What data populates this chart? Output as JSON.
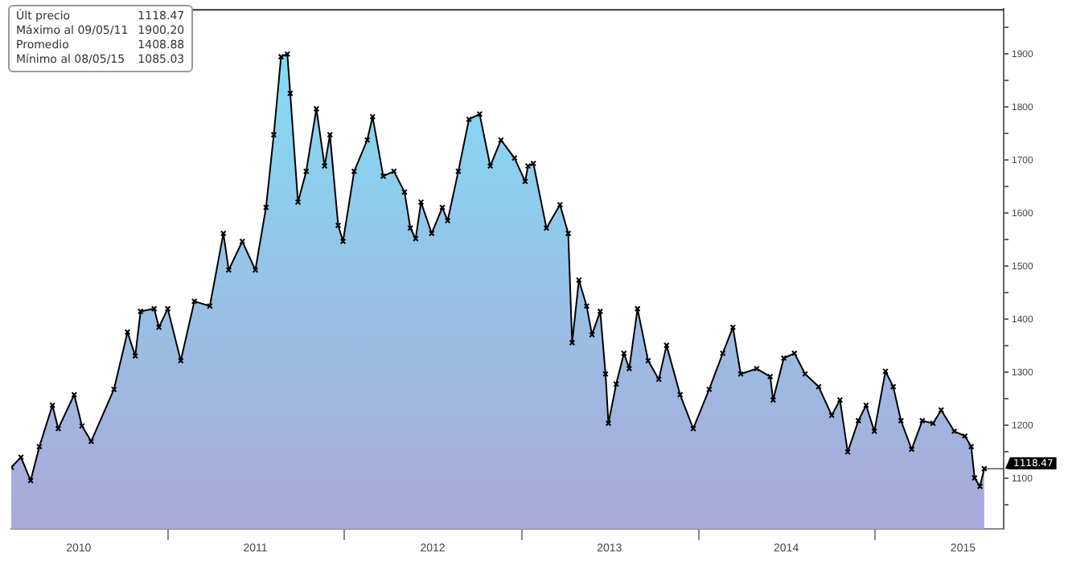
{
  "chart_data": {
    "type": "area",
    "x": [
      "2010-02-12",
      "2010-03-04",
      "2010-03-24",
      "2010-04-11",
      "2010-05-08",
      "2010-05-20",
      "2010-06-22",
      "2010-07-08",
      "2010-07-27",
      "2010-09-12",
      "2010-10-10",
      "2010-10-26",
      "2010-11-06",
      "2010-12-04",
      "2010-12-14",
      "2011-01-01",
      "2011-01-28",
      "2011-02-25",
      "2011-03-29",
      "2011-04-26",
      "2011-05-07",
      "2011-06-04",
      "2011-07-01",
      "2011-07-23",
      "2011-08-08",
      "2011-08-23",
      "2011-09-05",
      "2011-09-11",
      "2011-09-27",
      "2011-10-14",
      "2011-11-04",
      "2011-11-21",
      "2011-12-02",
      "2011-12-19",
      "2011-12-29",
      "2012-01-21",
      "2012-02-17",
      "2012-02-28",
      "2012-03-21",
      "2012-04-12",
      "2012-05-04",
      "2012-05-16",
      "2012-05-27",
      "2012-06-07",
      "2012-06-29",
      "2012-07-21",
      "2012-08-01",
      "2012-08-23",
      "2012-09-14",
      "2012-10-06",
      "2012-10-28",
      "2012-11-19",
      "2012-12-17",
      "2013-01-08",
      "2013-01-14",
      "2013-01-25",
      "2013-02-21",
      "2013-03-21",
      "2013-04-07",
      "2013-04-15",
      "2013-04-29",
      "2013-05-15",
      "2013-05-26",
      "2013-06-12",
      "2013-06-23",
      "2013-06-29",
      "2013-07-15",
      "2013-07-31",
      "2013-08-11",
      "2013-08-28",
      "2013-09-19",
      "2013-10-11",
      "2013-10-27",
      "2013-11-24",
      "2013-12-21",
      "2014-01-23",
      "2014-02-20",
      "2014-03-13",
      "2014-03-29",
      "2014-05-01",
      "2014-05-29",
      "2014-06-04",
      "2014-06-26",
      "2014-07-18",
      "2014-08-09",
      "2014-09-06",
      "2014-10-03",
      "2014-10-20",
      "2014-11-05",
      "2014-11-27",
      "2014-12-13",
      "2014-12-30",
      "2015-01-22",
      "2015-02-07",
      "2015-02-23",
      "2015-03-17",
      "2015-04-08",
      "2015-04-30",
      "2015-05-17",
      "2015-06-13",
      "2015-07-05",
      "2015-07-18",
      "2015-07-25",
      "2015-08-05",
      "2015-08-14"
    ],
    "series": [
      {
        "color": "#000000",
        "values": [
          1121,
          1140,
          1096,
          1160,
          1238,
          1194,
          1258,
          1199,
          1170,
          1268,
          1376,
          1331,
          1415,
          1420,
          1385,
          1420,
          1322,
          1434,
          1425,
          1562,
          1493,
          1547,
          1493,
          1611,
          1748,
          1895,
          1900.2,
          1826,
          1621,
          1679,
          1797,
          1689,
          1748,
          1577,
          1547,
          1679,
          1738,
          1782,
          1670,
          1679,
          1640,
          1572,
          1552,
          1621,
          1562,
          1611,
          1586,
          1679,
          1777,
          1787,
          1689,
          1738,
          1704,
          1660,
          1689,
          1694,
          1572,
          1616,
          1562,
          1356,
          1474,
          1425,
          1371,
          1415,
          1297,
          1204,
          1278,
          1336,
          1307,
          1420,
          1322,
          1287,
          1351,
          1258,
          1194,
          1268,
          1336,
          1385,
          1297,
          1307,
          1292,
          1248,
          1327,
          1336,
          1297,
          1273,
          1219,
          1248,
          1150,
          1209,
          1238,
          1189,
          1302,
          1273,
          1209,
          1155,
          1209,
          1204,
          1229,
          1189,
          1180,
          1160,
          1101,
          1085.03,
          1118.47
        ]
      }
    ],
    "xlim": [
      "2010-02-12",
      "2015-09-23"
    ],
    "xticks": [
      {
        "value": "2010-07-01",
        "label": "2010"
      },
      {
        "value": "2011-01-01",
        "label": null
      },
      {
        "value": "2011-07-01",
        "label": "2011"
      },
      {
        "value": "2012-01-01",
        "label": null
      },
      {
        "value": "2012-07-01",
        "label": "2012"
      },
      {
        "value": "2013-01-01",
        "label": null
      },
      {
        "value": "2013-07-01",
        "label": "2013"
      },
      {
        "value": "2014-01-01",
        "label": null
      },
      {
        "value": "2014-07-01",
        "label": "2014"
      },
      {
        "value": "2015-01-01",
        "label": null
      },
      {
        "value": "2015-07-01",
        "label": "2015"
      }
    ],
    "ylim": [
      1005,
      1985
    ],
    "yticks": [
      {
        "value": 1050,
        "label": null
      },
      1100,
      {
        "value": 1150,
        "label": null
      },
      1200,
      {
        "value": 1250,
        "label": null
      },
      1300,
      {
        "value": 1350,
        "label": null
      },
      1400,
      {
        "value": 1450,
        "label": null
      },
      1500,
      {
        "value": 1550,
        "label": null
      },
      1600,
      {
        "value": 1650,
        "label": null
      },
      1700,
      {
        "value": 1750,
        "label": null
      },
      1800,
      {
        "value": 1850,
        "label": null
      },
      1900,
      {
        "value": 1950,
        "label": null
      }
    ],
    "grid": false,
    "legend": false,
    "marker": "cross",
    "line_style": "solid",
    "annotations": [
      "Últ precio 1118.47",
      "Máximo al 09/05/11 1900.20",
      "Promedio 1408.88",
      "Mínimo al 08/05/15 1085.03",
      {
        "text": "1118.47",
        "x": "2015-08-14",
        "y": 1118.47
      }
    ]
  }
}
